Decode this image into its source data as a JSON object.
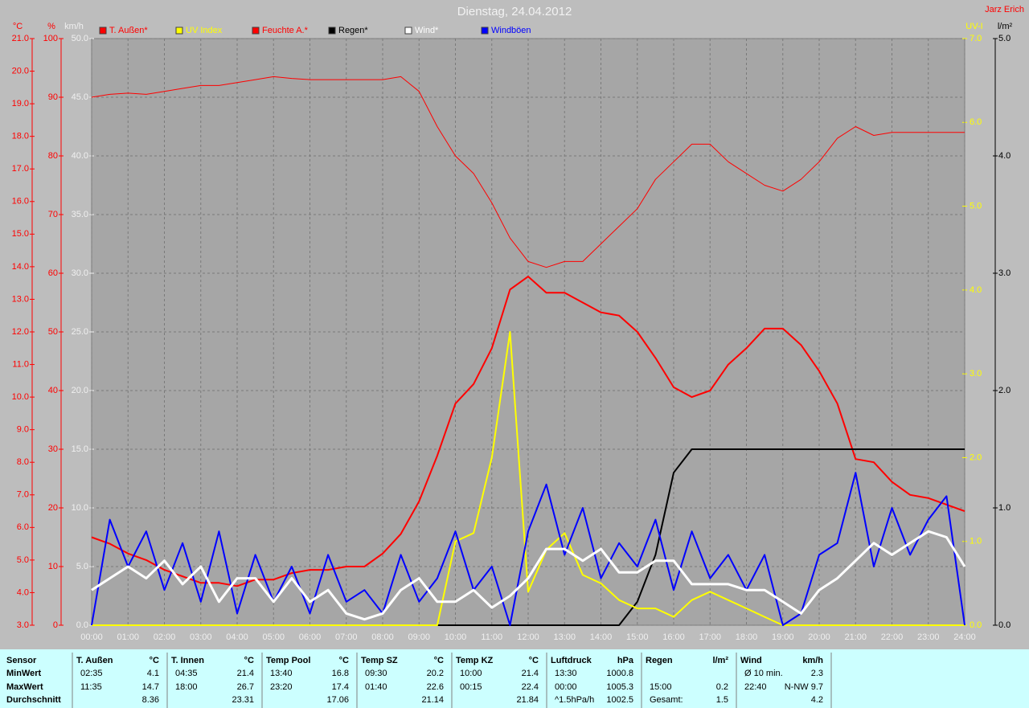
{
  "chart_data": {
    "type": "line",
    "title": "Dienstag, 24.04.2012",
    "author": "Jarz Erich",
    "x": [
      0,
      0.5,
      1,
      1.5,
      2,
      2.5,
      3,
      3.5,
      4,
      4.5,
      5,
      5.5,
      6,
      6.5,
      7,
      7.5,
      8,
      8.5,
      9,
      9.5,
      10,
      10.5,
      11,
      11.5,
      12,
      12.5,
      13,
      13.5,
      14,
      14.5,
      15,
      15.5,
      16,
      16.5,
      17,
      17.5,
      18,
      18.5,
      19,
      19.5,
      20,
      20.5,
      21,
      21.5,
      22,
      22.5,
      23,
      23.5,
      24
    ],
    "xlim": [
      0,
      24
    ],
    "xticks": [
      {
        "value": 0,
        "label": "00:00"
      },
      {
        "value": 1,
        "label": "01:00"
      },
      {
        "value": 2,
        "label": "02:00"
      },
      {
        "value": 3,
        "label": "03:00"
      },
      {
        "value": 4,
        "label": "04:00"
      },
      {
        "value": 5,
        "label": "05:00"
      },
      {
        "value": 6,
        "label": "06:00"
      },
      {
        "value": 7,
        "label": "07:00"
      },
      {
        "value": 8,
        "label": "08:00"
      },
      {
        "value": 9,
        "label": "09:00"
      },
      {
        "value": 10,
        "label": "10:00"
      },
      {
        "value": 11,
        "label": "11:00"
      },
      {
        "value": 12,
        "label": "12:00"
      },
      {
        "value": 13,
        "label": "13:00"
      },
      {
        "value": 14,
        "label": "14:00"
      },
      {
        "value": 15,
        "label": "15:00"
      },
      {
        "value": 16,
        "label": "16:00"
      },
      {
        "value": 17,
        "label": "17:00"
      },
      {
        "value": 18,
        "label": "18:00"
      },
      {
        "value": 19,
        "label": "19:00"
      },
      {
        "value": 20,
        "label": "20:00"
      },
      {
        "value": 21,
        "label": "21:00"
      },
      {
        "value": 22,
        "label": "22:00"
      },
      {
        "value": 23,
        "label": "23:00"
      },
      {
        "value": 24,
        "label": "24:00"
      }
    ],
    "grid": true,
    "axes": [
      {
        "unit": "°C",
        "color": "#ff0000",
        "lim": [
          3,
          21
        ],
        "ticks": [
          {
            "value": 3,
            "label": "3.0"
          },
          {
            "value": 4,
            "label": "4.0"
          },
          {
            "value": 5,
            "label": "5.0"
          },
          {
            "value": 6,
            "label": "6.0"
          },
          {
            "value": 7,
            "label": "7.0"
          },
          {
            "value": 8,
            "label": "8.0"
          },
          {
            "value": 9,
            "label": "9.0"
          },
          {
            "value": 10,
            "label": "10.0"
          },
          {
            "value": 11,
            "label": "11.0"
          },
          {
            "value": 12,
            "label": "12.0"
          },
          {
            "value": 13,
            "label": "13.0"
          },
          {
            "value": 14,
            "label": "14.0"
          },
          {
            "value": 15,
            "label": "15.0"
          },
          {
            "value": 16,
            "label": "16.0"
          },
          {
            "value": 17,
            "label": "17.0"
          },
          {
            "value": 18,
            "label": "18.0"
          },
          {
            "value": 19,
            "label": "19.0"
          },
          {
            "value": 20,
            "label": "20.0"
          },
          {
            "value": 21,
            "label": "21.0"
          }
        ]
      },
      {
        "unit": "%",
        "color": "#ff0000",
        "lim": [
          0,
          100
        ],
        "ticks": [
          0,
          10,
          20,
          30,
          40,
          50,
          60,
          70,
          80,
          90,
          100
        ]
      },
      {
        "unit": "km/h",
        "color": "#f0f0f0",
        "lim": [
          0,
          50
        ],
        "ticks": [
          {
            "value": 0,
            "label": "0.0"
          },
          {
            "value": 5,
            "label": "5.0"
          },
          {
            "value": 10,
            "label": "10.0"
          },
          {
            "value": 15,
            "label": "15.0"
          },
          {
            "value": 20,
            "label": "20.0"
          },
          {
            "value": 25,
            "label": "25.0"
          },
          {
            "value": 30,
            "label": "30.0"
          },
          {
            "value": 35,
            "label": "35.0"
          },
          {
            "value": 40,
            "label": "40.0"
          },
          {
            "value": 45,
            "label": "45.0"
          },
          {
            "value": 50,
            "label": "50.0"
          }
        ]
      },
      {
        "unit": "UV-I",
        "color": "#ffff00",
        "lim": [
          0,
          7
        ],
        "ticks": [
          {
            "value": 0,
            "label": "0.0"
          },
          {
            "value": 1,
            "label": "1.0"
          },
          {
            "value": 2,
            "label": "2.0"
          },
          {
            "value": 3,
            "label": "3.0"
          },
          {
            "value": 4,
            "label": "4.0"
          },
          {
            "value": 5,
            "label": "5.0"
          },
          {
            "value": 6,
            "label": "6.0"
          },
          {
            "value": 7,
            "label": "7.0"
          }
        ]
      },
      {
        "unit": "l/m²",
        "color": "#000000",
        "lim": [
          0,
          5
        ],
        "ticks": [
          {
            "value": 0,
            "label": "0.0"
          },
          {
            "value": 1,
            "label": "1.0"
          },
          {
            "value": 2,
            "label": "2.0"
          },
          {
            "value": 3,
            "label": "3.0"
          },
          {
            "value": 4,
            "label": "4.0"
          },
          {
            "value": 5,
            "label": "5.0"
          }
        ]
      }
    ],
    "series": [
      {
        "name": "T. Außen*",
        "color": "#ff0000",
        "axis": 0,
        "values": [
          5.7,
          5.5,
          5.2,
          5.0,
          4.7,
          4.5,
          4.3,
          4.3,
          4.2,
          4.4,
          4.4,
          4.6,
          4.7,
          4.7,
          4.8,
          4.8,
          5.2,
          5.8,
          6.8,
          8.2,
          9.8,
          10.4,
          11.5,
          13.3,
          13.7,
          13.2,
          13.2,
          12.9,
          12.6,
          12.5,
          12.0,
          11.2,
          10.3,
          10.0,
          10.2,
          11.0,
          11.5,
          12.1,
          12.1,
          11.6,
          10.8,
          9.8,
          8.1,
          8.0,
          7.4,
          7.0,
          6.9,
          6.7,
          6.5
        ]
      },
      {
        "name": "UV Index",
        "color": "#ffff00",
        "axis": 3,
        "values": [
          0,
          0,
          0,
          0,
          0,
          0,
          0,
          0,
          0,
          0,
          0,
          0,
          0,
          0,
          0,
          0,
          0,
          0,
          0,
          0,
          1.0,
          1.1,
          2.0,
          3.5,
          0.4,
          0.9,
          1.1,
          0.6,
          0.5,
          0.3,
          0.2,
          0.2,
          0.1,
          0.3,
          0.4,
          0.3,
          0.2,
          0.1,
          0,
          0,
          0,
          0,
          0,
          0,
          0,
          0,
          0,
          0,
          0
        ]
      },
      {
        "name": "Feuchte A.*",
        "color": "#ff0000",
        "axis": 1,
        "values": [
          90,
          90.5,
          90.7,
          90.5,
          91,
          91.5,
          92,
          92,
          92.5,
          93,
          93.5,
          93.2,
          93,
          93,
          93,
          93,
          93,
          93.5,
          91,
          85,
          80,
          77,
          72,
          66,
          62,
          61,
          62,
          62,
          65,
          68,
          71,
          76,
          79,
          82,
          82,
          79,
          77,
          75,
          74,
          76,
          79,
          83,
          85,
          83.5,
          84,
          84,
          84,
          84,
          84
        ]
      },
      {
        "name": "Regen*",
        "color": "#000000",
        "axis": 4,
        "values": [
          0,
          0,
          0,
          0,
          0,
          0,
          0,
          0,
          0,
          0,
          0,
          0,
          0,
          0,
          0,
          0,
          0,
          0,
          0,
          0,
          0,
          0,
          0,
          0,
          0,
          0,
          0,
          0,
          0,
          0,
          0.2,
          0.6,
          1.3,
          1.5,
          1.5,
          1.5,
          1.5,
          1.5,
          1.5,
          1.5,
          1.5,
          1.5,
          1.5,
          1.5,
          1.5,
          1.5,
          1.5,
          1.5,
          1.5
        ]
      },
      {
        "name": "Wind*",
        "color": "#ffffff",
        "axis": 2,
        "values": [
          3,
          4,
          5,
          4,
          5.5,
          3.5,
          5,
          2,
          4,
          4,
          2,
          4,
          2,
          3,
          1,
          0.5,
          1,
          3,
          4,
          2,
          2,
          3,
          1.5,
          2.5,
          4,
          6.5,
          6.5,
          5.5,
          6.5,
          4.5,
          4.5,
          5.5,
          5.5,
          3.5,
          3.5,
          3.5,
          3,
          3,
          2,
          1,
          3,
          4,
          5.5,
          7,
          6,
          7,
          8,
          7.5,
          5
        ]
      },
      {
        "name": "Windböen",
        "color": "#0000ff",
        "axis": 2,
        "values": [
          0,
          9,
          5,
          8,
          3,
          7,
          2,
          8,
          1,
          6,
          2,
          5,
          1,
          6,
          2,
          3,
          1,
          6,
          2,
          4,
          8,
          3,
          5,
          0,
          8,
          12,
          6,
          10,
          4,
          7,
          5,
          9,
          3,
          8,
          4,
          6,
          3,
          6,
          0,
          1,
          6,
          7,
          13,
          5,
          10,
          6,
          9,
          11,
          0
        ]
      }
    ]
  },
  "stats": {
    "row_labels": [
      "Sensor",
      "MinWert",
      "MaxWert",
      "Durchschnitt"
    ],
    "groups": [
      {
        "name": "T. Außen",
        "unit": "°C",
        "rows": [
          [
            "02:35",
            "4.1"
          ],
          [
            "11:35",
            "14.7"
          ],
          [
            null,
            "8.36"
          ]
        ]
      },
      {
        "name": "T. Innen",
        "unit": "°C",
        "rows": [
          [
            "04:35",
            "21.4"
          ],
          [
            "18:00",
            "26.7"
          ],
          [
            null,
            "23.31"
          ]
        ]
      },
      {
        "name": "Temp Pool",
        "unit": "°C",
        "rows": [
          [
            "13:40",
            "16.8"
          ],
          [
            "23:20",
            "17.4"
          ],
          [
            null,
            "17.06"
          ]
        ]
      },
      {
        "name": "Temp SZ",
        "unit": "°C",
        "rows": [
          [
            "09:30",
            "20.2"
          ],
          [
            "01:40",
            "22.6"
          ],
          [
            null,
            "21.14"
          ]
        ]
      },
      {
        "name": "Temp KZ",
        "unit": "°C",
        "rows": [
          [
            "10:00",
            "21.4"
          ],
          [
            "00:15",
            "22.4"
          ],
          [
            null,
            "21.84"
          ]
        ]
      },
      {
        "name": "Luftdruck",
        "unit": "hPa",
        "rows": [
          [
            "13:30",
            "1000.8"
          ],
          [
            "00:00",
            "1005.3"
          ],
          [
            "^1.5hPa/h",
            "1002.5"
          ]
        ]
      },
      {
        "name": "Regen",
        "unit": "l/m²",
        "rows": [
          [
            null,
            null
          ],
          [
            "15:00",
            "0.2"
          ],
          [
            "Gesamt:",
            "1.5"
          ]
        ]
      },
      {
        "name": "Wind",
        "unit": "km/h",
        "rows": [
          [
            "Ø 10 min.",
            "2.3"
          ],
          [
            "22:40",
            "N-NW 9.7"
          ],
          [
            null,
            "4.2"
          ]
        ]
      }
    ]
  }
}
